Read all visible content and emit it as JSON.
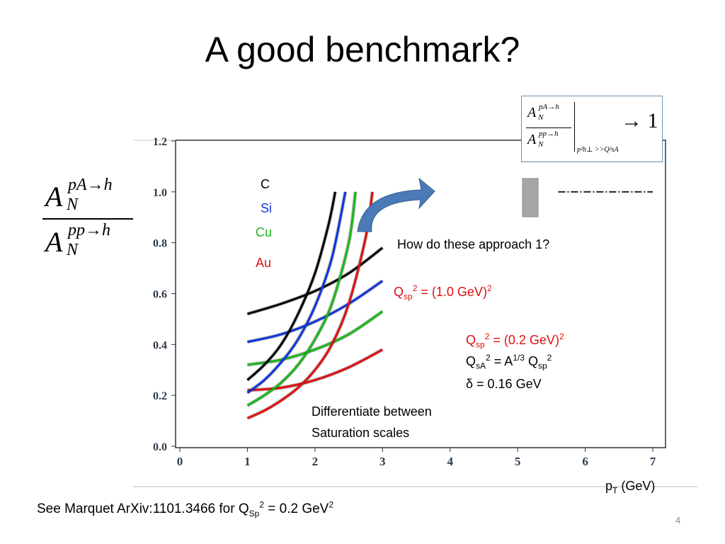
{
  "title": "A good benchmark?",
  "page_number": "4",
  "footnote": {
    "prefix": "See Marquet ArXiv:1101.3466 for Q",
    "sub": "Sp",
    "sup": "2",
    "suffix": " = 0.2 GeV",
    "sup2": "2"
  },
  "y_axis_label": {
    "numerator_main": "A",
    "numerator_sup": "pA→h",
    "numerator_sub": "N",
    "denominator_main": "A",
    "denominator_sup": "pp→h",
    "denominator_sub": "N"
  },
  "limit_box": {
    "num_main": "A",
    "num_sup": "pA→h",
    "num_sub": "N",
    "den_main": "A",
    "den_sup": "pp→h",
    "den_sub": "N",
    "condition": "p²h⊥ >>Q²sA",
    "arrow_value": "→ 1"
  },
  "annotations": {
    "question": "How do these approach 1?",
    "qsp_red_label": "Q",
    "qsp_red_sub": "sp",
    "qsp_red_text": " = (1.0 GeV)",
    "qsp_low_label": "Q",
    "qsp_low_sub": "sp",
    "qsp_low_text": " = (0.2 GeV)",
    "qsa_label": "Q",
    "qsa_sub": "sA",
    "qsa_text_a": " = A",
    "qsa_exp": "1/3",
    "qsa_text_b": " Q",
    "qsa_sub2": "sp",
    "delta_text": "δ = 0.16 GeV",
    "diff_line1": "Differentiate between",
    "diff_line2": "Saturation scales",
    "sup2": "2"
  },
  "colors": {
    "C": "#000000",
    "Si": "#1036e0",
    "Cu": "#19b919",
    "Au": "#e01010",
    "arrow": "#4a7ab8",
    "annotation_red": "#e01010",
    "limit_box_border": "#6b8fb3"
  },
  "chart_data": {
    "type": "line",
    "xlabel": "pT (GeV)",
    "xlabel_main": "p",
    "xlabel_sub": "T",
    "xlabel_unit": " (GeV)",
    "xlim": [
      0,
      7
    ],
    "ylim": [
      0,
      1.2
    ],
    "x_ticks": [
      "0",
      "1",
      "2",
      "3",
      "4",
      "5",
      "6",
      "7"
    ],
    "y_ticks": [
      "0.0",
      "0.2",
      "0.4",
      "0.6",
      "0.8",
      "1.0",
      "1.2"
    ],
    "legend": [
      "C",
      "Si",
      "Cu",
      "Au"
    ],
    "legend_placement": "top-center",
    "series": [
      {
        "name": "C",
        "group": "Qsp2 = (1.0 GeV)2",
        "x": [
          1.0,
          1.5,
          2.0,
          2.5,
          3.0
        ],
        "y": [
          0.52,
          0.56,
          0.61,
          0.68,
          0.78
        ]
      },
      {
        "name": "Si",
        "group": "Qsp2 = (1.0 GeV)2",
        "x": [
          1.0,
          1.5,
          2.0,
          2.5,
          3.0
        ],
        "y": [
          0.41,
          0.44,
          0.49,
          0.56,
          0.65
        ]
      },
      {
        "name": "Cu",
        "group": "Qsp2 = (1.0 GeV)2",
        "x": [
          1.0,
          1.5,
          2.0,
          2.5,
          3.0
        ],
        "y": [
          0.32,
          0.34,
          0.38,
          0.44,
          0.53
        ]
      },
      {
        "name": "Au",
        "group": "Qsp2 = (1.0 GeV)2",
        "x": [
          1.0,
          1.5,
          2.0,
          2.5,
          3.0
        ],
        "y": [
          0.22,
          0.23,
          0.26,
          0.31,
          0.38
        ]
      },
      {
        "name": "C",
        "group": "Qsp2 = (0.2 GeV)2",
        "x": [
          1.0,
          1.25,
          1.5,
          1.75,
          2.0,
          2.2,
          2.3
        ],
        "y": [
          0.26,
          0.32,
          0.4,
          0.52,
          0.68,
          0.87,
          1.0
        ]
      },
      {
        "name": "Si",
        "group": "Qsp2 = (0.2 GeV)2",
        "x": [
          1.0,
          1.25,
          1.5,
          1.75,
          2.0,
          2.25,
          2.45
        ],
        "y": [
          0.21,
          0.26,
          0.33,
          0.42,
          0.55,
          0.74,
          1.0
        ]
      },
      {
        "name": "Cu",
        "group": "Qsp2 = (0.2 GeV)2",
        "x": [
          1.0,
          1.25,
          1.5,
          1.75,
          2.0,
          2.25,
          2.5,
          2.6
        ],
        "y": [
          0.16,
          0.2,
          0.25,
          0.32,
          0.42,
          0.56,
          0.8,
          1.0
        ]
      },
      {
        "name": "Au",
        "group": "Qsp2 = (0.2 GeV)2",
        "x": [
          1.0,
          1.25,
          1.5,
          1.75,
          2.0,
          2.25,
          2.5,
          2.75,
          2.85
        ],
        "y": [
          0.11,
          0.14,
          0.18,
          0.23,
          0.3,
          0.4,
          0.56,
          0.82,
          1.0
        ]
      }
    ],
    "reference_line": {
      "y": 1.0,
      "x_from": 5.6,
      "x_to": 7.0,
      "style": "dash-dot"
    }
  }
}
